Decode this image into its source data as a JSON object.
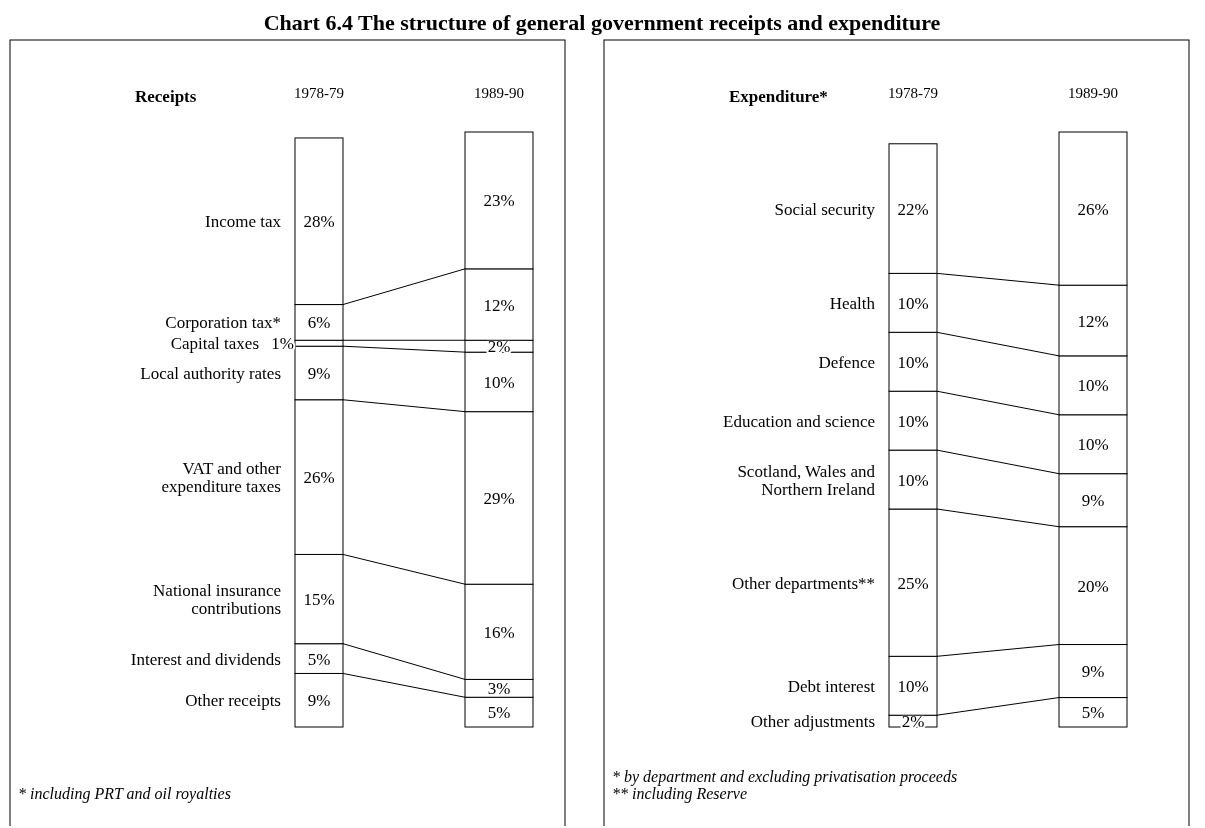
{
  "chart_data": [
    {
      "type": "bar",
      "title": "Receipts",
      "stacked": true,
      "categories": [
        "1978-79",
        "1989-90"
      ],
      "annotations": [
        "Chart 6.4   The structure of general government receipts and expenditure",
        "* including PRT and oil royalties"
      ],
      "series": [
        {
          "name": "Other receipts",
          "color": "#ffffff",
          "values": [
            9,
            5
          ],
          "value_labels": [
            "9%",
            "5%"
          ]
        },
        {
          "name": "Interest and dividends",
          "color": "#ffffff",
          "values": [
            5,
            3
          ],
          "value_labels": [
            "5%",
            "3%"
          ]
        },
        {
          "name": "National insurance contributions",
          "color": "#ffffff",
          "values": [
            15,
            16
          ],
          "value_labels": [
            "15%",
            "16%"
          ]
        },
        {
          "name": "VAT and other expenditure taxes",
          "color": "#ffffff",
          "values": [
            26,
            29
          ],
          "value_labels": [
            "26%",
            "29%"
          ]
        },
        {
          "name": "Local authority rates",
          "color": "#ffffff",
          "values": [
            9,
            10
          ],
          "value_labels": [
            "9%",
            "10%"
          ]
        },
        {
          "name": "Capital taxes",
          "color": "#ffffff",
          "values": [
            1,
            2
          ],
          "value_labels": [
            "1%",
            "2%"
          ]
        },
        {
          "name": "Corporation tax*",
          "color": "#ffffff",
          "values": [
            6,
            12
          ],
          "value_labels": [
            "6%",
            "12%"
          ]
        },
        {
          "name": "Income tax",
          "color": "#ffffff",
          "values": [
            28,
            23
          ],
          "value_labels": [
            "28%",
            "23%"
          ]
        }
      ]
    },
    {
      "type": "bar",
      "title": "Expenditure*",
      "stacked": true,
      "categories": [
        "1978-79",
        "1989-90"
      ],
      "annotations": [
        "* by department and excluding privatisation proceeds",
        "** including Reserve"
      ],
      "series": [
        {
          "name": "Other adjustments",
          "color": "#ffffff",
          "values": [
            2,
            5
          ],
          "value_labels": [
            "2%",
            "5%"
          ]
        },
        {
          "name": "Debt interest",
          "color": "#ffffff",
          "values": [
            10,
            9
          ],
          "value_labels": [
            "10%",
            "9%"
          ]
        },
        {
          "name": "Other departments**",
          "color": "#ffffff",
          "values": [
            25,
            20
          ],
          "value_labels": [
            "25%",
            "20%"
          ]
        },
        {
          "name": "Scotland, Wales and Northern Ireland",
          "color": "#ffffff",
          "values": [
            10,
            9
          ],
          "value_labels": [
            "10%",
            "9%"
          ]
        },
        {
          "name": "Education and science",
          "color": "#ffffff",
          "values": [
            10,
            10
          ],
          "value_labels": [
            "10%",
            "10%"
          ]
        },
        {
          "name": "Defence",
          "color": "#ffffff",
          "values": [
            10,
            10
          ],
          "value_labels": [
            "10%",
            "10%"
          ]
        },
        {
          "name": "Health",
          "color": "#ffffff",
          "values": [
            10,
            12
          ],
          "value_labels": [
            "10%",
            "12%"
          ]
        },
        {
          "name": "Social security",
          "color": "#ffffff",
          "values": [
            22,
            26
          ],
          "value_labels": [
            "22%",
            "26%"
          ]
        }
      ]
    }
  ]
}
